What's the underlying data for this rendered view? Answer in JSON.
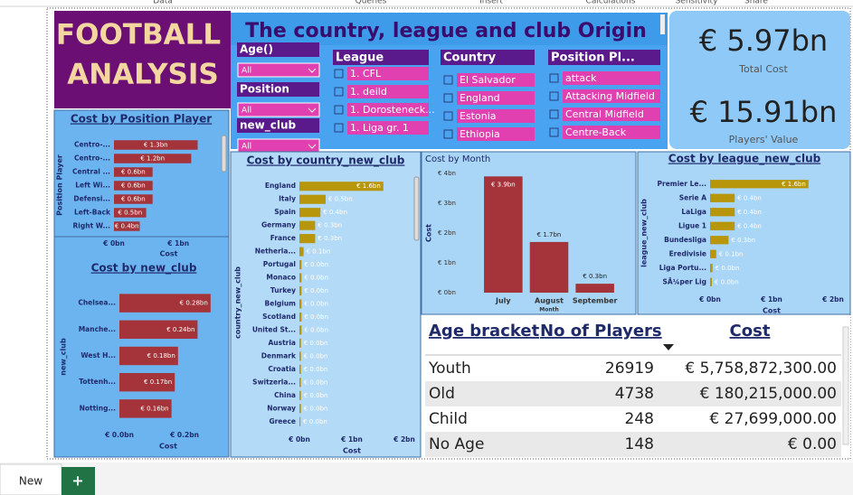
{
  "ribbon": [
    "Data",
    "Queries",
    "Insert",
    "Calculations",
    "Sensitivity",
    "Share"
  ],
  "header": {
    "title_lines": [
      "FOOTBALL",
      "ANALYSIS"
    ],
    "banner": "The country, league and club Origin"
  },
  "slicers": [
    {
      "title": "Age()",
      "value": "All"
    },
    {
      "title": "Position",
      "value": "All"
    },
    {
      "title": "new_club",
      "value": "All"
    }
  ],
  "list_slicers": [
    {
      "title": "League",
      "items": [
        "1. CFL",
        "1. deild",
        "1. Dorosteneck...",
        "1. Liga gr. 1"
      ]
    },
    {
      "title": "Country",
      "items": [
        "El Salvador",
        "England",
        "Estonia",
        "Ethiopia"
      ]
    },
    {
      "title": "Position Pl...",
      "items": [
        "attack",
        "Attacking Midfield",
        "Central Midfield",
        "Centre-Back"
      ]
    }
  ],
  "cards": [
    {
      "value": "€ 5.97bn",
      "label": "Total Cost"
    },
    {
      "value": "€ 15.91bn",
      "label": "Players' Value"
    }
  ],
  "chart_data": [
    {
      "type": "bar",
      "orientation": "horizontal",
      "title": "Cost by Position Player",
      "categories": [
        "Centro-...",
        "Centro-...",
        "Central ...",
        "Left Wi...",
        "Defensi...",
        "Left-Back",
        "Right W..."
      ],
      "values": [
        1.3,
        1.2,
        0.6,
        0.6,
        0.6,
        0.5,
        0.4
      ],
      "value_labels": [
        "€ 1.3bn",
        "€ 1.2bn",
        "€ 0.6bn",
        "€ 0.6bn",
        "€ 0.6bn",
        "€ 0.5bn",
        "€ 0.4bn"
      ],
      "color": "#a4343a",
      "xlim": [
        0,
        1.7
      ],
      "xticks": [
        {
          "value": 0,
          "label": "€ 0bn"
        },
        {
          "value": 1,
          "label": "€ 1bn"
        }
      ],
      "xlabel": "Cost",
      "ylabel": "Position Player"
    },
    {
      "type": "bar",
      "orientation": "horizontal",
      "title": "Cost by new_club",
      "categories": [
        "Chelsea...",
        "Manche...",
        "West H...",
        "Tottenh...",
        "Notting..."
      ],
      "values": [
        0.28,
        0.24,
        0.18,
        0.17,
        0.16
      ],
      "value_labels": [
        "€ 0.28bn",
        "€ 0.24bn",
        "€ 0.18bn",
        "€ 0.17bn",
        "€ 0.16bn"
      ],
      "color": "#a4343a",
      "xlim": [
        0,
        0.3
      ],
      "xticks": [
        {
          "value": 0,
          "label": "€ 0.0bn"
        },
        {
          "value": 0.2,
          "label": "€ 0.2bn"
        }
      ],
      "xlabel": "Cost",
      "ylabel": "new_club"
    },
    {
      "type": "bar",
      "orientation": "horizontal",
      "title": "Cost by country_new_club",
      "categories": [
        "England",
        "Italy",
        "Spain",
        "Germany",
        "France",
        "Netherla...",
        "Portugal",
        "Monaco",
        "Turkey",
        "Belgium",
        "Scotland",
        "United St...",
        "Austria",
        "Denmark",
        "Croatia",
        "Switzerla...",
        "China",
        "Norway",
        "Greece"
      ],
      "values": [
        1.6,
        0.5,
        0.4,
        0.3,
        0.3,
        0.08,
        0.04,
        0.04,
        0.04,
        0.04,
        0.04,
        0.04,
        0.03,
        0.03,
        0.03,
        0.03,
        0.03,
        0.03,
        0.02
      ],
      "value_labels": [
        "€ 1.6bn",
        "€ 0.5bn",
        "€ 0.4bn",
        "€ 0.3bn",
        "€ 0.3bn",
        "€ 0.1bn",
        "€ 0.0bn",
        "€ 0.0bn",
        "€ 0.0bn",
        "€ 0.0bn",
        "€ 0.0bn",
        "€ 0.0bn",
        "€ 0.0bn",
        "€ 0.0bn",
        "€ 0.0bn",
        "€ 0.0bn",
        "€ 0.0bn",
        "€ 0.0bn",
        "€ 0.0bn"
      ],
      "color": "#b8960c",
      "xlim": [
        0,
        2
      ],
      "xticks": [
        {
          "value": 0,
          "label": "€ 0bn"
        },
        {
          "value": 1,
          "label": "€ 1bn"
        },
        {
          "value": 2,
          "label": "€ 2bn"
        }
      ],
      "xlabel": "Cost",
      "ylabel": "country_new_club"
    },
    {
      "type": "bar",
      "orientation": "vertical",
      "title": "Cost by Month",
      "categories": [
        "July",
        "August",
        "September"
      ],
      "values": [
        3.9,
        1.7,
        0.3
      ],
      "value_labels": [
        "€ 3.9bn",
        "€ 1.7bn",
        "€ 0.3bn"
      ],
      "color": "#a4343a",
      "ylim": [
        0,
        4
      ],
      "yticks": [
        {
          "value": 0,
          "label": "€ 0bn"
        },
        {
          "value": 1,
          "label": "€ 1bn"
        },
        {
          "value": 2,
          "label": "€ 2bn"
        },
        {
          "value": 3,
          "label": "€ 3bn"
        },
        {
          "value": 4,
          "label": "€ 4bn"
        }
      ],
      "xlabel": "Month",
      "ylabel": "Cost"
    },
    {
      "type": "bar",
      "orientation": "horizontal",
      "title": "Cost by league_new_club",
      "categories": [
        "Premier Le...",
        "Serie A",
        "LaLiga",
        "Ligue 1",
        "Bundesliga",
        "Eredivisie",
        "Liga Portu...",
        "SÃ¼per Lig"
      ],
      "values": [
        1.6,
        0.4,
        0.4,
        0.4,
        0.3,
        0.1,
        0.04,
        0.03
      ],
      "value_labels": [
        "€ 1.6bn",
        "€ 0.4bn",
        "€ 0.4bn",
        "€ 0.4bn",
        "€ 0.3bn",
        "€ 0.1bn",
        "€ 0.0bn",
        "€ 0.0bn"
      ],
      "color": "#b8960c",
      "xlim": [
        0,
        2
      ],
      "xticks": [
        {
          "value": 0,
          "label": "€ 0bn"
        },
        {
          "value": 1,
          "label": "€ 1bn"
        },
        {
          "value": 2,
          "label": "€ 2bn"
        }
      ],
      "xlabel": "Cost",
      "ylabel": "league_new_club"
    }
  ],
  "table": {
    "columns": [
      "Age bracket",
      "No of Players",
      "Cost"
    ],
    "rows": [
      [
        "Youth",
        "26919",
        "€ 5,758,872,300.00"
      ],
      [
        "Old",
        "4738",
        "€ 180,215,000.00"
      ],
      [
        "Child",
        "248",
        "€ 27,699,000.00"
      ],
      [
        "No Age",
        "148",
        "€ 0.00"
      ]
    ]
  },
  "tabs": [
    "New",
    "+"
  ]
}
